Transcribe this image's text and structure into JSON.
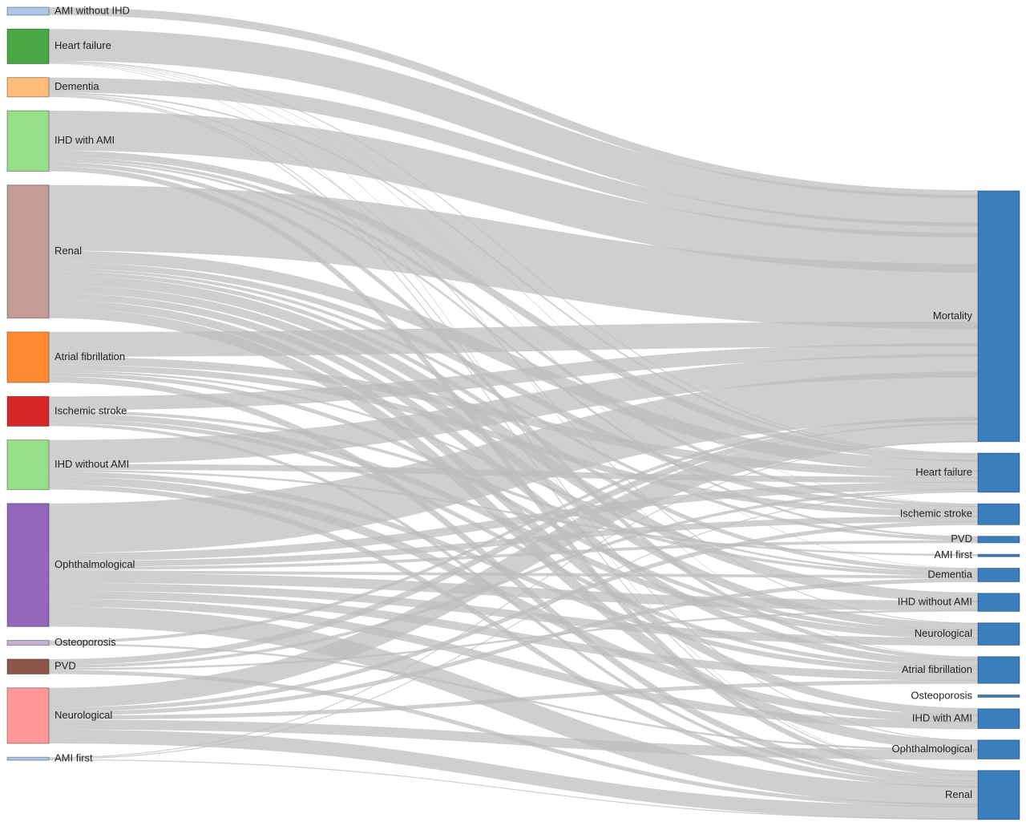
{
  "diagram": {
    "type": "sankey",
    "link_color": "#bdbdbd",
    "sources": [
      {
        "id": "src-ami-without-ihd",
        "label": "AMI without IHD",
        "color": "#aec7e8"
      },
      {
        "id": "src-heart-failure",
        "label": "Heart failure",
        "color": "#4aa844"
      },
      {
        "id": "src-dementia",
        "label": "Dementia",
        "color": "#ffbb78"
      },
      {
        "id": "src-ihd-with-ami",
        "label": "IHD with AMI",
        "color": "#98df8a"
      },
      {
        "id": "src-renal",
        "label": "Renal",
        "color": "#c49c94"
      },
      {
        "id": "src-atrial-fibrillation",
        "label": "Atrial fibrillation",
        "color": "#ff8c33"
      },
      {
        "id": "src-ischemic-stroke",
        "label": "Ischemic stroke",
        "color": "#d62728"
      },
      {
        "id": "src-ihd-without-ami",
        "label": "IHD without AMI",
        "color": "#98df8a"
      },
      {
        "id": "src-ophthalmological",
        "label": "Ophthalmological",
        "color": "#9467bd"
      },
      {
        "id": "src-osteoporosis",
        "label": "Osteoporosis",
        "color": "#c5b0d5"
      },
      {
        "id": "src-pvd",
        "label": "PVD",
        "color": "#8c564b"
      },
      {
        "id": "src-neurological",
        "label": "Neurological",
        "color": "#ff9896"
      },
      {
        "id": "src-ami-first",
        "label": "AMI first",
        "color": "#aec7e8"
      }
    ],
    "targets": [
      {
        "id": "tgt-mortality",
        "label": "Mortality",
        "color": "#3a7fbd"
      },
      {
        "id": "tgt-heart-failure",
        "label": "Heart failure",
        "color": "#3a7fbd"
      },
      {
        "id": "tgt-ischemic-stroke",
        "label": "Ischemic stroke",
        "color": "#3a7fbd"
      },
      {
        "id": "tgt-pvd",
        "label": "PVD",
        "color": "#3a7fbd"
      },
      {
        "id": "tgt-ami-first",
        "label": "AMI first",
        "color": "#3a7fbd"
      },
      {
        "id": "tgt-dementia",
        "label": "Dementia",
        "color": "#3a7fbd"
      },
      {
        "id": "tgt-ihd-without-ami",
        "label": "IHD without AMI",
        "color": "#3a7fbd"
      },
      {
        "id": "tgt-neurological",
        "label": "Neurological",
        "color": "#3a7fbd"
      },
      {
        "id": "tgt-atrial-fibrillation",
        "label": "Atrial fibrillation",
        "color": "#3a7fbd"
      },
      {
        "id": "tgt-osteoporosis",
        "label": "Osteoporosis",
        "color": "#3a7fbd"
      },
      {
        "id": "tgt-ihd-with-ami",
        "label": "IHD with AMI",
        "color": "#3a7fbd"
      },
      {
        "id": "tgt-ophthalmological",
        "label": "Ophthalmological",
        "color": "#3a7fbd"
      },
      {
        "id": "tgt-renal",
        "label": "Renal",
        "color": "#3a7fbd"
      }
    ],
    "links": [
      [
        "src-ami-without-ihd",
        "tgt-mortality",
        8
      ],
      [
        "src-heart-failure",
        "tgt-mortality",
        32
      ],
      [
        "src-heart-failure",
        "tgt-heart-failure",
        1
      ],
      [
        "src-heart-failure",
        "tgt-ischemic-stroke",
        0.5
      ],
      [
        "src-heart-failure",
        "tgt-dementia",
        0.5
      ],
      [
        "src-heart-failure",
        "tgt-atrial-fibrillation",
        0.5
      ],
      [
        "src-heart-failure",
        "tgt-renal",
        0.5
      ],
      [
        "src-dementia",
        "tgt-mortality",
        15
      ],
      [
        "src-dementia",
        "tgt-heart-failure",
        1.5
      ],
      [
        "src-dementia",
        "tgt-neurological",
        1
      ],
      [
        "src-dementia",
        "tgt-renal",
        1
      ],
      [
        "src-dementia",
        "tgt-ophthalmological",
        1
      ],
      [
        "src-ihd-with-ami",
        "tgt-mortality",
        40
      ],
      [
        "src-ihd-with-ami",
        "tgt-heart-failure",
        7
      ],
      [
        "src-ihd-with-ami",
        "tgt-ischemic-stroke",
        3
      ],
      [
        "src-ihd-with-ami",
        "tgt-atrial-fibrillation",
        4
      ],
      [
        "src-ihd-with-ami",
        "tgt-renal",
        5
      ],
      [
        "src-ihd-with-ami",
        "tgt-pvd",
        2
      ],
      [
        "src-renal",
        "tgt-mortality",
        66
      ],
      [
        "src-renal",
        "tgt-heart-failure",
        12
      ],
      [
        "src-renal",
        "tgt-ischemic-stroke",
        6
      ],
      [
        "src-renal",
        "tgt-ihd-without-ami",
        10
      ],
      [
        "src-renal",
        "tgt-neurological",
        8
      ],
      [
        "src-renal",
        "tgt-atrial-fibrillation",
        7
      ],
      [
        "src-renal",
        "tgt-ihd-with-ami",
        8
      ],
      [
        "src-renal",
        "tgt-ophthalmological",
        10
      ],
      [
        "src-renal",
        "tgt-dementia",
        4
      ],
      [
        "src-renal",
        "tgt-pvd",
        3
      ],
      [
        "src-atrial-fibrillation",
        "tgt-mortality",
        25
      ],
      [
        "src-atrial-fibrillation",
        "tgt-heart-failure",
        8
      ],
      [
        "src-atrial-fibrillation",
        "tgt-ischemic-stroke",
        6
      ],
      [
        "src-atrial-fibrillation",
        "tgt-neurological",
        4
      ],
      [
        "src-atrial-fibrillation",
        "tgt-renal",
        6
      ],
      [
        "src-atrial-fibrillation",
        "tgt-dementia",
        2
      ],
      [
        "src-ischemic-stroke",
        "tgt-mortality",
        14
      ],
      [
        "src-ischemic-stroke",
        "tgt-neurological",
        6
      ],
      [
        "src-ischemic-stroke",
        "tgt-atrial-fibrillation",
        4
      ],
      [
        "src-ischemic-stroke",
        "tgt-dementia",
        3
      ],
      [
        "src-ischemic-stroke",
        "tgt-renal",
        3
      ],
      [
        "src-ihd-without-ami",
        "tgt-mortality",
        24
      ],
      [
        "src-ihd-without-ami",
        "tgt-heart-failure",
        6
      ],
      [
        "src-ihd-without-ami",
        "tgt-ihd-with-ami",
        8
      ],
      [
        "src-ihd-without-ami",
        "tgt-atrial-fibrillation",
        5
      ],
      [
        "src-ihd-without-ami",
        "tgt-renal",
        5
      ],
      [
        "src-ihd-without-ami",
        "tgt-ami-first",
        2
      ],
      [
        "src-ophthalmological",
        "tgt-mortality",
        50
      ],
      [
        "src-ophthalmological",
        "tgt-heart-failure",
        8
      ],
      [
        "src-ophthalmological",
        "tgt-ischemic-stroke",
        6
      ],
      [
        "src-ophthalmological",
        "tgt-ihd-without-ami",
        10
      ],
      [
        "src-ophthalmological",
        "tgt-neurological",
        8
      ],
      [
        "src-ophthalmological",
        "tgt-atrial-fibrillation",
        8
      ],
      [
        "src-ophthalmological",
        "tgt-ihd-with-ami",
        8
      ],
      [
        "src-ophthalmological",
        "tgt-renal",
        20
      ],
      [
        "src-ophthalmological",
        "tgt-dementia",
        3
      ],
      [
        "src-ophthalmological",
        "tgt-pvd",
        3
      ],
      [
        "src-osteoporosis",
        "tgt-mortality",
        3
      ],
      [
        "src-osteoporosis",
        "tgt-ophthalmological",
        2
      ],
      [
        "src-pvd",
        "tgt-mortality",
        6
      ],
      [
        "src-pvd",
        "tgt-heart-failure",
        3
      ],
      [
        "src-pvd",
        "tgt-renal",
        4
      ],
      [
        "src-pvd",
        "tgt-ihd-without-ami",
        2
      ],
      [
        "src-neurological",
        "tgt-mortality",
        20
      ],
      [
        "src-neurological",
        "tgt-dementia",
        4
      ],
      [
        "src-neurological",
        "tgt-ischemic-stroke",
        4
      ],
      [
        "src-neurological",
        "tgt-ophthalmological",
        10
      ],
      [
        "src-neurological",
        "tgt-renal",
        14
      ],
      [
        "src-neurological",
        "tgt-atrial-fibrillation",
        4
      ],
      [
        "src-ami-first",
        "tgt-mortality",
        1
      ],
      [
        "src-ami-first",
        "tgt-heart-failure",
        1
      ],
      [
        "src-ami-first",
        "tgt-renal",
        1
      ]
    ]
  }
}
